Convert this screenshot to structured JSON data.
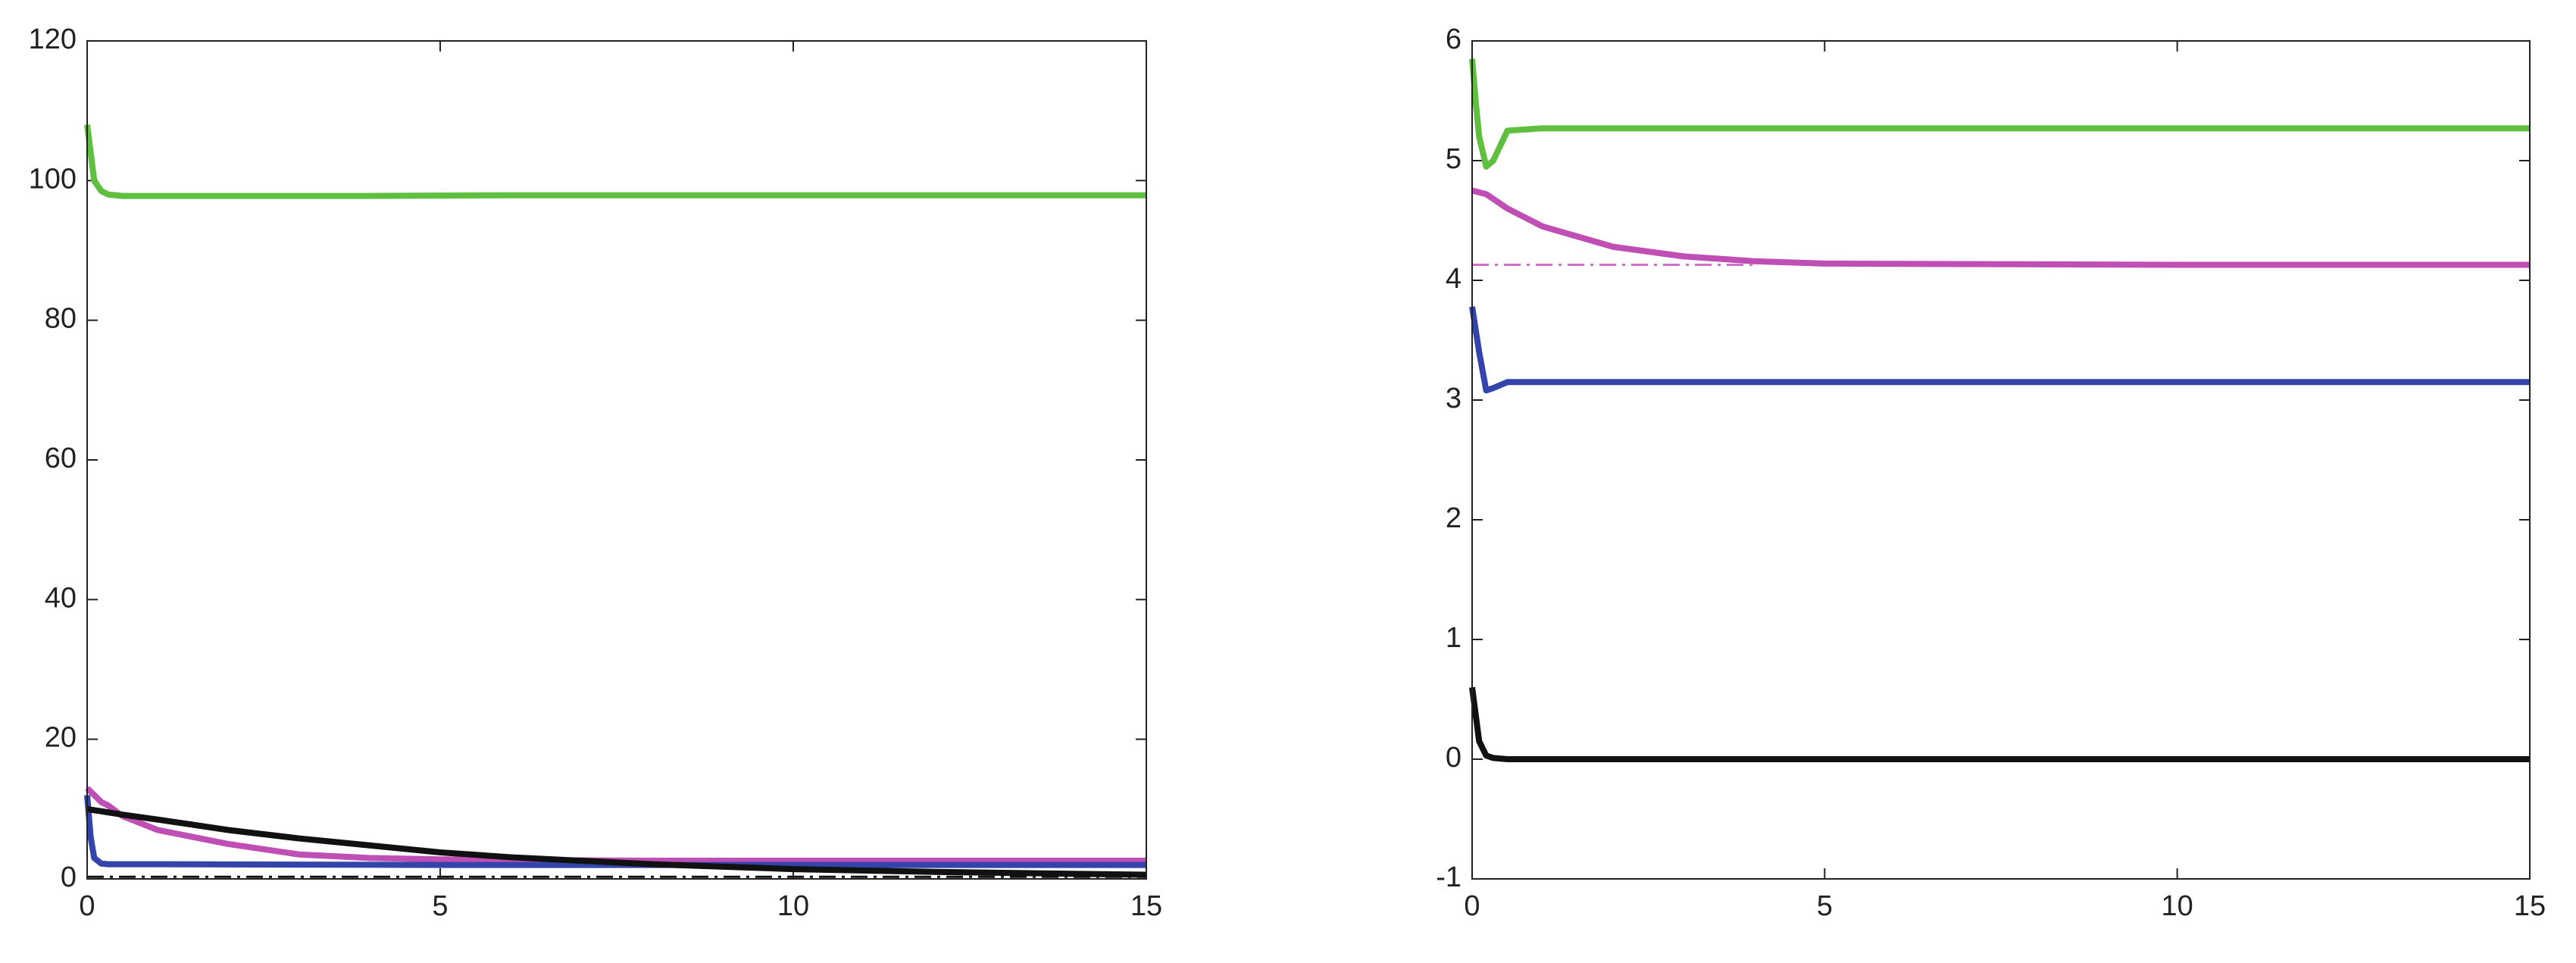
{
  "chart_data": [
    {
      "type": "line",
      "xlim": [
        0,
        15
      ],
      "ylim": [
        0,
        120
      ],
      "xticks": [
        0,
        5,
        10,
        15
      ],
      "yticks": [
        0,
        20,
        40,
        60,
        80,
        100,
        120
      ],
      "grid": false,
      "series": [
        {
          "color": "#5fbf3f",
          "x": [
            0,
            0.1,
            0.2,
            0.3,
            0.5,
            1,
            2,
            4,
            6,
            8,
            10,
            12,
            15
          ],
          "values": [
            108,
            100,
            98.5,
            98,
            97.8,
            97.8,
            97.8,
            97.8,
            97.9,
            97.9,
            97.9,
            97.9,
            97.9
          ]
        },
        {
          "color": "#c04fb5",
          "x": [
            0,
            0.1,
            0.2,
            0.3,
            0.5,
            1,
            2,
            3,
            4,
            5,
            6,
            8,
            10,
            15
          ],
          "values": [
            13,
            12,
            11,
            10.5,
            9,
            7,
            5,
            3.5,
            3,
            2.8,
            2.7,
            2.6,
            2.6,
            2.6
          ]
        },
        {
          "color": "#3344aa",
          "x": [
            0,
            0.05,
            0.1,
            0.2,
            0.3,
            0.5,
            1,
            5,
            10,
            15
          ],
          "values": [
            12,
            6,
            3,
            2.2,
            2.1,
            2.1,
            2.1,
            2,
            2,
            2
          ]
        },
        {
          "color": "#111111",
          "x": [
            0,
            0.5,
            1,
            2,
            3,
            4,
            5,
            6,
            7,
            8,
            10,
            12,
            15
          ],
          "values": [
            10,
            9.2,
            8.5,
            7,
            5.8,
            4.8,
            3.8,
            3.1,
            2.6,
            2.1,
            1.4,
            1,
            0.6
          ]
        },
        {
          "color": "#111111",
          "dash": true,
          "x": [
            0,
            15
          ],
          "values": [
            0.3,
            0.3
          ]
        }
      ]
    },
    {
      "type": "line",
      "xlim": [
        0,
        15
      ],
      "ylim": [
        -1,
        6
      ],
      "xticks": [
        0,
        5,
        10,
        15
      ],
      "yticks": [
        -1,
        0,
        1,
        2,
        3,
        4,
        5,
        6
      ],
      "grid": false,
      "series": [
        {
          "color": "#5fbf3f",
          "x": [
            0,
            0.05,
            0.1,
            0.2,
            0.3,
            0.5,
            1,
            5,
            10,
            15
          ],
          "values": [
            5.85,
            5.5,
            5.2,
            4.95,
            5.0,
            5.25,
            5.27,
            5.27,
            5.27,
            5.27
          ]
        },
        {
          "color": "#c04fb5",
          "x": [
            0,
            0.2,
            0.5,
            1,
            2,
            3,
            4,
            5,
            10,
            15
          ],
          "values": [
            4.75,
            4.72,
            4.6,
            4.45,
            4.28,
            4.2,
            4.16,
            4.14,
            4.13,
            4.13
          ]
        },
        {
          "color": "#3344aa",
          "x": [
            0,
            0.1,
            0.2,
            0.3,
            0.5,
            1,
            5,
            10,
            15
          ],
          "values": [
            3.78,
            3.4,
            3.08,
            3.1,
            3.15,
            3.15,
            3.15,
            3.15,
            3.15
          ]
        },
        {
          "color": "#111111",
          "x": [
            0,
            0.1,
            0.2,
            0.3,
            0.5,
            1,
            5,
            10,
            15
          ],
          "values": [
            0.6,
            0.15,
            0.03,
            0.01,
            0,
            0,
            0,
            0,
            0
          ]
        },
        {
          "color": "#d070c8",
          "dash": true,
          "x": [
            0,
            4
          ],
          "values": [
            4.13,
            4.13
          ]
        }
      ]
    }
  ]
}
